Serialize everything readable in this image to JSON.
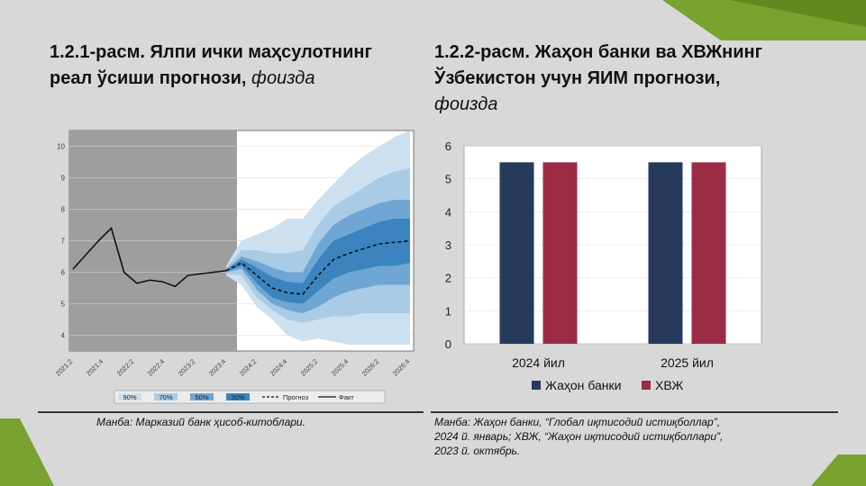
{
  "titles": {
    "left_bold": "1.2.1-расм. Ялпи ички маҳсулотнинг реал ўсиши прогнози,",
    "left_italic": "фоизда",
    "right_bold": "1.2.2-расм. Жаҳон банки ва ХВЖнинг Ўзбекистон учун ЯИМ прогнози,",
    "right_italic": "фоизда"
  },
  "sources": {
    "left": "Манба: Марказий банк ҳисоб-китоблари.",
    "right_line1": "Манба: Жаҳон банки, “Глобал иқтисодий истиқболлар”,",
    "right_line2": "2024 й. январь; ХВЖ, “Жаҳон иқтисодий истиқболлари”,",
    "right_line3": "2023 й. октябрь."
  },
  "colors": {
    "background": "#d8d8d8",
    "history_shade": "#9e9e9e",
    "band_90": "#cde0ef",
    "band_70": "#a9cbe6",
    "band_50": "#6fa6d3",
    "band_30": "#3b84bf",
    "world_bank": "#263a5c",
    "imf": "#9c2b44",
    "corner_green": "#7aa230"
  },
  "chart_data": [
    {
      "type": "area",
      "ylim": [
        3.5,
        10.5
      ],
      "yticks": [
        "4",
        "5",
        "6",
        "7",
        "8",
        "9",
        "10"
      ],
      "xticks": [
        "2021:2",
        "2021:4",
        "2022:2",
        "2022:4",
        "2023:2",
        "2023:4",
        "2024:2",
        "2024:4",
        "2025:2",
        "2025:4",
        "2026:2",
        "2026:4"
      ],
      "legend": [
        "90%",
        "70%",
        "50%",
        "30%",
        "Прогноз",
        "Факт"
      ],
      "fact": {
        "x": [
          0,
          1,
          1.5,
          2,
          2.5,
          3,
          3.5,
          4,
          4.5,
          5,
          5.5,
          6
        ],
        "y": [
          6.1,
          7.0,
          7.4,
          6.0,
          5.65,
          5.75,
          5.7,
          5.55,
          5.9,
          5.95,
          6.0,
          6.05
        ]
      },
      "forecast": {
        "x": [
          10,
          11,
          12,
          13,
          14,
          15,
          16,
          17,
          18,
          19,
          20,
          21,
          22
        ],
        "y": [
          6.05,
          6.3,
          5.9,
          5.5,
          5.35,
          5.3,
          5.9,
          6.4,
          6.6,
          6.75,
          6.9,
          6.95,
          7.0
        ]
      },
      "bands": {
        "x": [
          10,
          11,
          12,
          13,
          14,
          15,
          16,
          17,
          18,
          19,
          20,
          21,
          22
        ],
        "p90_upper": [
          6.2,
          7.0,
          7.2,
          7.4,
          7.7,
          7.7,
          8.3,
          8.8,
          9.3,
          9.7,
          10.0,
          10.3,
          10.5
        ],
        "p90_lower": [
          5.9,
          5.6,
          4.9,
          4.5,
          4.0,
          3.8,
          3.9,
          3.8,
          3.7,
          3.7,
          3.7,
          3.7,
          3.7
        ],
        "p70_upper": [
          6.15,
          6.7,
          6.7,
          6.6,
          6.6,
          6.7,
          7.5,
          8.1,
          8.4,
          8.7,
          9.0,
          9.2,
          9.3
        ],
        "p70_lower": [
          5.95,
          5.9,
          5.2,
          4.8,
          4.5,
          4.4,
          4.5,
          4.6,
          4.6,
          4.7,
          4.7,
          4.7,
          4.7
        ],
        "p50_upper": [
          6.1,
          6.5,
          6.35,
          6.15,
          6.0,
          6.0,
          6.9,
          7.5,
          7.8,
          8.0,
          8.2,
          8.3,
          8.3
        ],
        "p50_lower": [
          6.0,
          6.1,
          5.45,
          5.0,
          4.8,
          4.7,
          4.9,
          5.2,
          5.4,
          5.5,
          5.6,
          5.6,
          5.6
        ],
        "p30_upper": [
          6.08,
          6.4,
          6.15,
          5.85,
          5.7,
          5.65,
          6.4,
          7.0,
          7.2,
          7.4,
          7.6,
          7.7,
          7.7
        ],
        "p30_lower": [
          6.02,
          6.2,
          5.65,
          5.2,
          5.05,
          5.0,
          5.4,
          5.8,
          6.0,
          6.1,
          6.2,
          6.2,
          6.3
        ]
      }
    },
    {
      "type": "bar",
      "categories": [
        "2024 йил",
        "2025 йил"
      ],
      "series": [
        {
          "name": "Жаҳон банки",
          "values": [
            5.5,
            5.5
          ]
        },
        {
          "name": "ХВЖ",
          "values": [
            5.5,
            5.5
          ]
        }
      ],
      "ylim": [
        0,
        6
      ],
      "yticks": [
        "0",
        "1",
        "2",
        "3",
        "4",
        "5",
        "6"
      ]
    }
  ]
}
